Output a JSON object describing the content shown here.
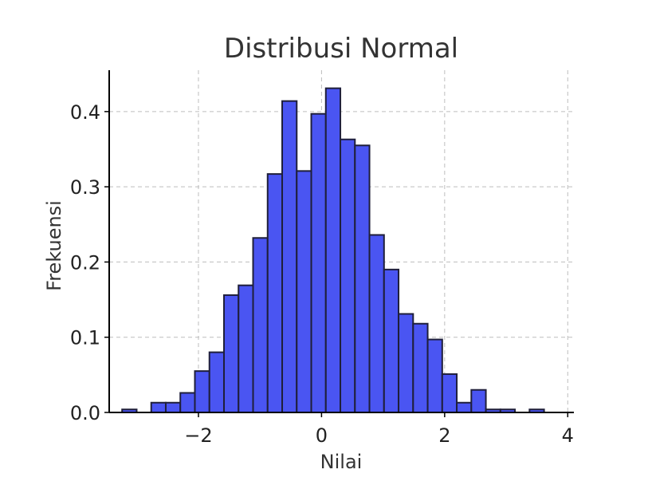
{
  "chart_data": {
    "type": "bar",
    "title": "Distribusi Normal",
    "xlabel": "Nilai",
    "ylabel": "Frekuensi",
    "xlim": [
      -3.45,
      4.1
    ],
    "ylim": [
      0,
      0.455
    ],
    "xticks": [
      -2,
      0,
      2,
      4
    ],
    "xtick_labels": [
      "−2",
      "0",
      "2",
      "4"
    ],
    "yticks": [
      0,
      0.1,
      0.2,
      0.3,
      0.4
    ],
    "ytick_labels": [
      "0.0",
      "0.1",
      "0.2",
      "0.3",
      "0.4"
    ],
    "grid": true,
    "bar_color": "#4a55f2",
    "bin_start": -3.24,
    "bin_width": 0.2364,
    "values": [
      0.004,
      0,
      0.013,
      0.013,
      0.026,
      0.055,
      0.08,
      0.156,
      0.169,
      0.232,
      0.317,
      0.414,
      0.321,
      0.397,
      0.431,
      0.363,
      0.355,
      0.236,
      0.19,
      0.131,
      0.118,
      0.097,
      0.051,
      0.013,
      0.03,
      0.004,
      0.004,
      0,
      0.004
    ]
  }
}
